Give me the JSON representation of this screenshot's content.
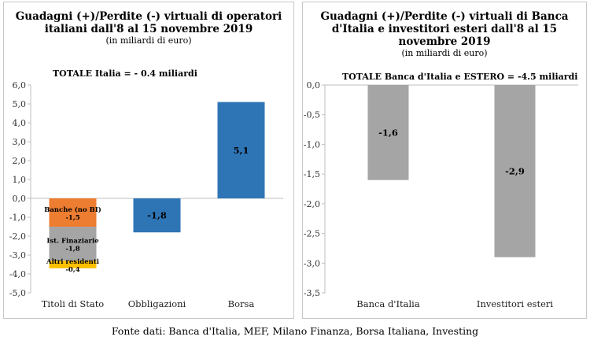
{
  "charts": [
    {
      "title_line1": "Guadagni (+)/Perdite (-) virtuali di operatori",
      "title_line2": "italiani dall'8 al 15 novembre 2019",
      "subtitle": "(in miliardi di euro)",
      "total": "TOTALE Italia = - 0.4 miliardi"
    },
    {
      "title_line1": "Guadagni (+)/Perdite (-) virtuali di Banca",
      "title_line2": "d'Italia e investitori esteri dall'8 al 15",
      "title_line3": "novembre 2019",
      "subtitle": "(in miliardi di euro)",
      "total": "TOTALE Banca d'Italia e ESTERO = -4.5 miliardi"
    }
  ],
  "source": "Fonte dati: Banca d'Italia, MEF, Milano Finanza, Borsa Italiana, Investing",
  "chart_data": [
    {
      "type": "bar",
      "title": "Guadagni (+)/Perdite (-) virtuali di operatori italiani dall'8 al 15 novembre 2019",
      "subtitle": "(in miliardi di euro)",
      "annotation": "TOTALE Italia = - 0.4 miliardi",
      "categories": [
        "Titoli di Stato",
        "Obbligazioni",
        "Borsa"
      ],
      "ylim": [
        -5.0,
        6.0
      ],
      "ytick_step": 1.0,
      "yticks": [
        "6,0",
        "5,0",
        "4,0",
        "3,0",
        "2,0",
        "1,0",
        "0,0",
        "-1,0",
        "-2,0",
        "-3,0",
        "-4,0",
        "-5,0"
      ],
      "grid": false,
      "bars": [
        {
          "category": "Titoli di Stato",
          "stacked": true,
          "segments": [
            {
              "label": "Banche (no BI)",
              "value": -1.5,
              "value_label": "-1,5",
              "color": "#ED7D31"
            },
            {
              "label": "Ist. Finaziarie",
              "value": -1.8,
              "value_label": "-1,8",
              "color": "#A5A5A5"
            },
            {
              "label": "Altri residenti",
              "value": -0.4,
              "value_label": "-0,4",
              "color": "#FFC000"
            }
          ]
        },
        {
          "category": "Obbligazioni",
          "value": -1.8,
          "value_label": "-1,8",
          "color": "#2E75B6"
        },
        {
          "category": "Borsa",
          "value": 5.1,
          "value_label": "5,1",
          "color": "#2E75B6"
        }
      ]
    },
    {
      "type": "bar",
      "title": "Guadagni (+)/Perdite (-) virtuali di Banca d'Italia e investitori esteri dall'8 al 15 novembre 2019",
      "subtitle": "(in miliardi di euro)",
      "annotation": "TOTALE Banca d'Italia e ESTERO = -4.5 miliardi",
      "categories": [
        "Banca d'Italia",
        "Investitori esteri"
      ],
      "ylim": [
        -3.5,
        0.0
      ],
      "ytick_step": 0.5,
      "yticks": [
        "0,0",
        "-0,5",
        "-1,0",
        "-1,5",
        "-2,0",
        "-2,5",
        "-3,0",
        "-3,5"
      ],
      "grid": false,
      "bars": [
        {
          "category": "Banca d'Italia",
          "value": -1.6,
          "value_label": "-1,6",
          "color": "#A5A5A5"
        },
        {
          "category": "Investitori esteri",
          "value": -2.9,
          "value_label": "-2,9",
          "color": "#A5A5A5"
        }
      ]
    }
  ]
}
